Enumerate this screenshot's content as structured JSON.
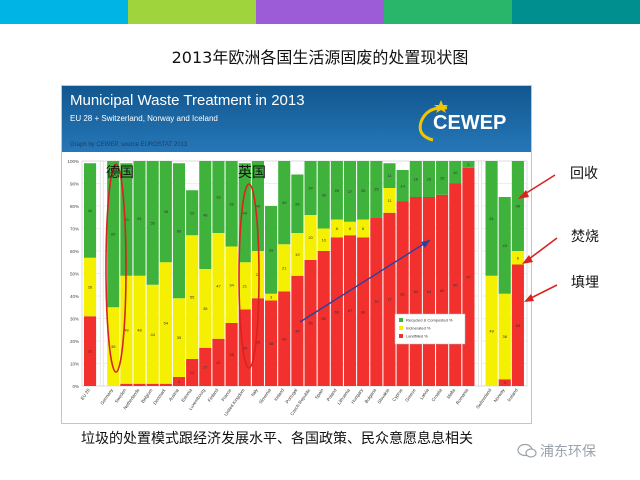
{
  "slide": {
    "title": "2013年欧洲各国生活源固废的处置现状图",
    "footer": "垃圾的处置模式跟经济发展水平、各国政策、民众意愿息息相关",
    "watermark": "浦东环保",
    "top_bar_colors": [
      "#00b4e6",
      "#9fd43c",
      "#9c5cd8",
      "#29b56a",
      "#008f8f"
    ]
  },
  "side_labels": {
    "recycling": "回收",
    "incineration": "焚烧",
    "landfill": "填埋"
  },
  "callouts": {
    "germany": "德国",
    "uk": "英国"
  },
  "chart_header": {
    "title": "Municipal Waste Treatment in 2013",
    "subtitle": "EU 28 + Switzerland, Norway and Iceland",
    "credit": "Graph by CEWEP, source EUROSTAT 2013",
    "logo": "CEWEP",
    "logo_icon": "star-swoosh-icon"
  },
  "chart_data": {
    "type": "bar",
    "stacked": true,
    "title": "Municipal Waste Treatment in 2013",
    "ylim": [
      0,
      100
    ],
    "y_ticks": [
      "0%",
      "10%",
      "20%",
      "30%",
      "40%",
      "50%",
      "60%",
      "70%",
      "80%",
      "90%",
      "100%"
    ],
    "grid": true,
    "legend_position": "bottom-right-inside",
    "categories": [
      "EU 28",
      "Germany",
      "Sweden",
      "Netherlands",
      "Belgium",
      "Denmark",
      "Austria",
      "Estonia",
      "Luxembourg",
      "Finland",
      "France",
      "United Kingdom",
      "Italy",
      "Slovenia",
      "Ireland",
      "Portugal",
      "Czech Republic",
      "Spain",
      "Poland",
      "Lithuania",
      "Hungary",
      "Bulgaria",
      "Slovakia",
      "Cyprus",
      "Greece",
      "Latvia",
      "Croatia",
      "Malta",
      "Romania",
      "Switzerland",
      "Norway",
      "Iceland"
    ],
    "groups": [
      [
        0,
        0
      ],
      [
        1,
        28
      ],
      [
        29,
        31
      ]
    ],
    "series": [
      {
        "name": "Recycled & Composted %",
        "color": "#3fb23c",
        "values": [
          42,
          65,
          50,
          51,
          55,
          45,
          60,
          20,
          48,
          33,
          39,
          44,
          40,
          39,
          40,
          26,
          24,
          30,
          26,
          27,
          26,
          25,
          11,
          14,
          16,
          16,
          15,
          10,
          3,
          51,
          43,
          40
        ]
      },
      {
        "name": "Incinerated %",
        "color": "#f5f002",
        "values": [
          26,
          35,
          48,
          48,
          44,
          54,
          35,
          55,
          35,
          47,
          34,
          21,
          21,
          3,
          21,
          19,
          20,
          10,
          8,
          6,
          8,
          0,
          11,
          0,
          0,
          0,
          0,
          0,
          0,
          49,
          38,
          6
        ]
      },
      {
        "name": "Landfilled %",
        "color": "#f2312e",
        "values": [
          31,
          0,
          1,
          1,
          1,
          1,
          4,
          12,
          17,
          21,
          28,
          34,
          39,
          38,
          42,
          49,
          56,
          60,
          66,
          67,
          66,
          75,
          77,
          82,
          84,
          84,
          85,
          90,
          97,
          0,
          3,
          54
        ]
      }
    ]
  }
}
